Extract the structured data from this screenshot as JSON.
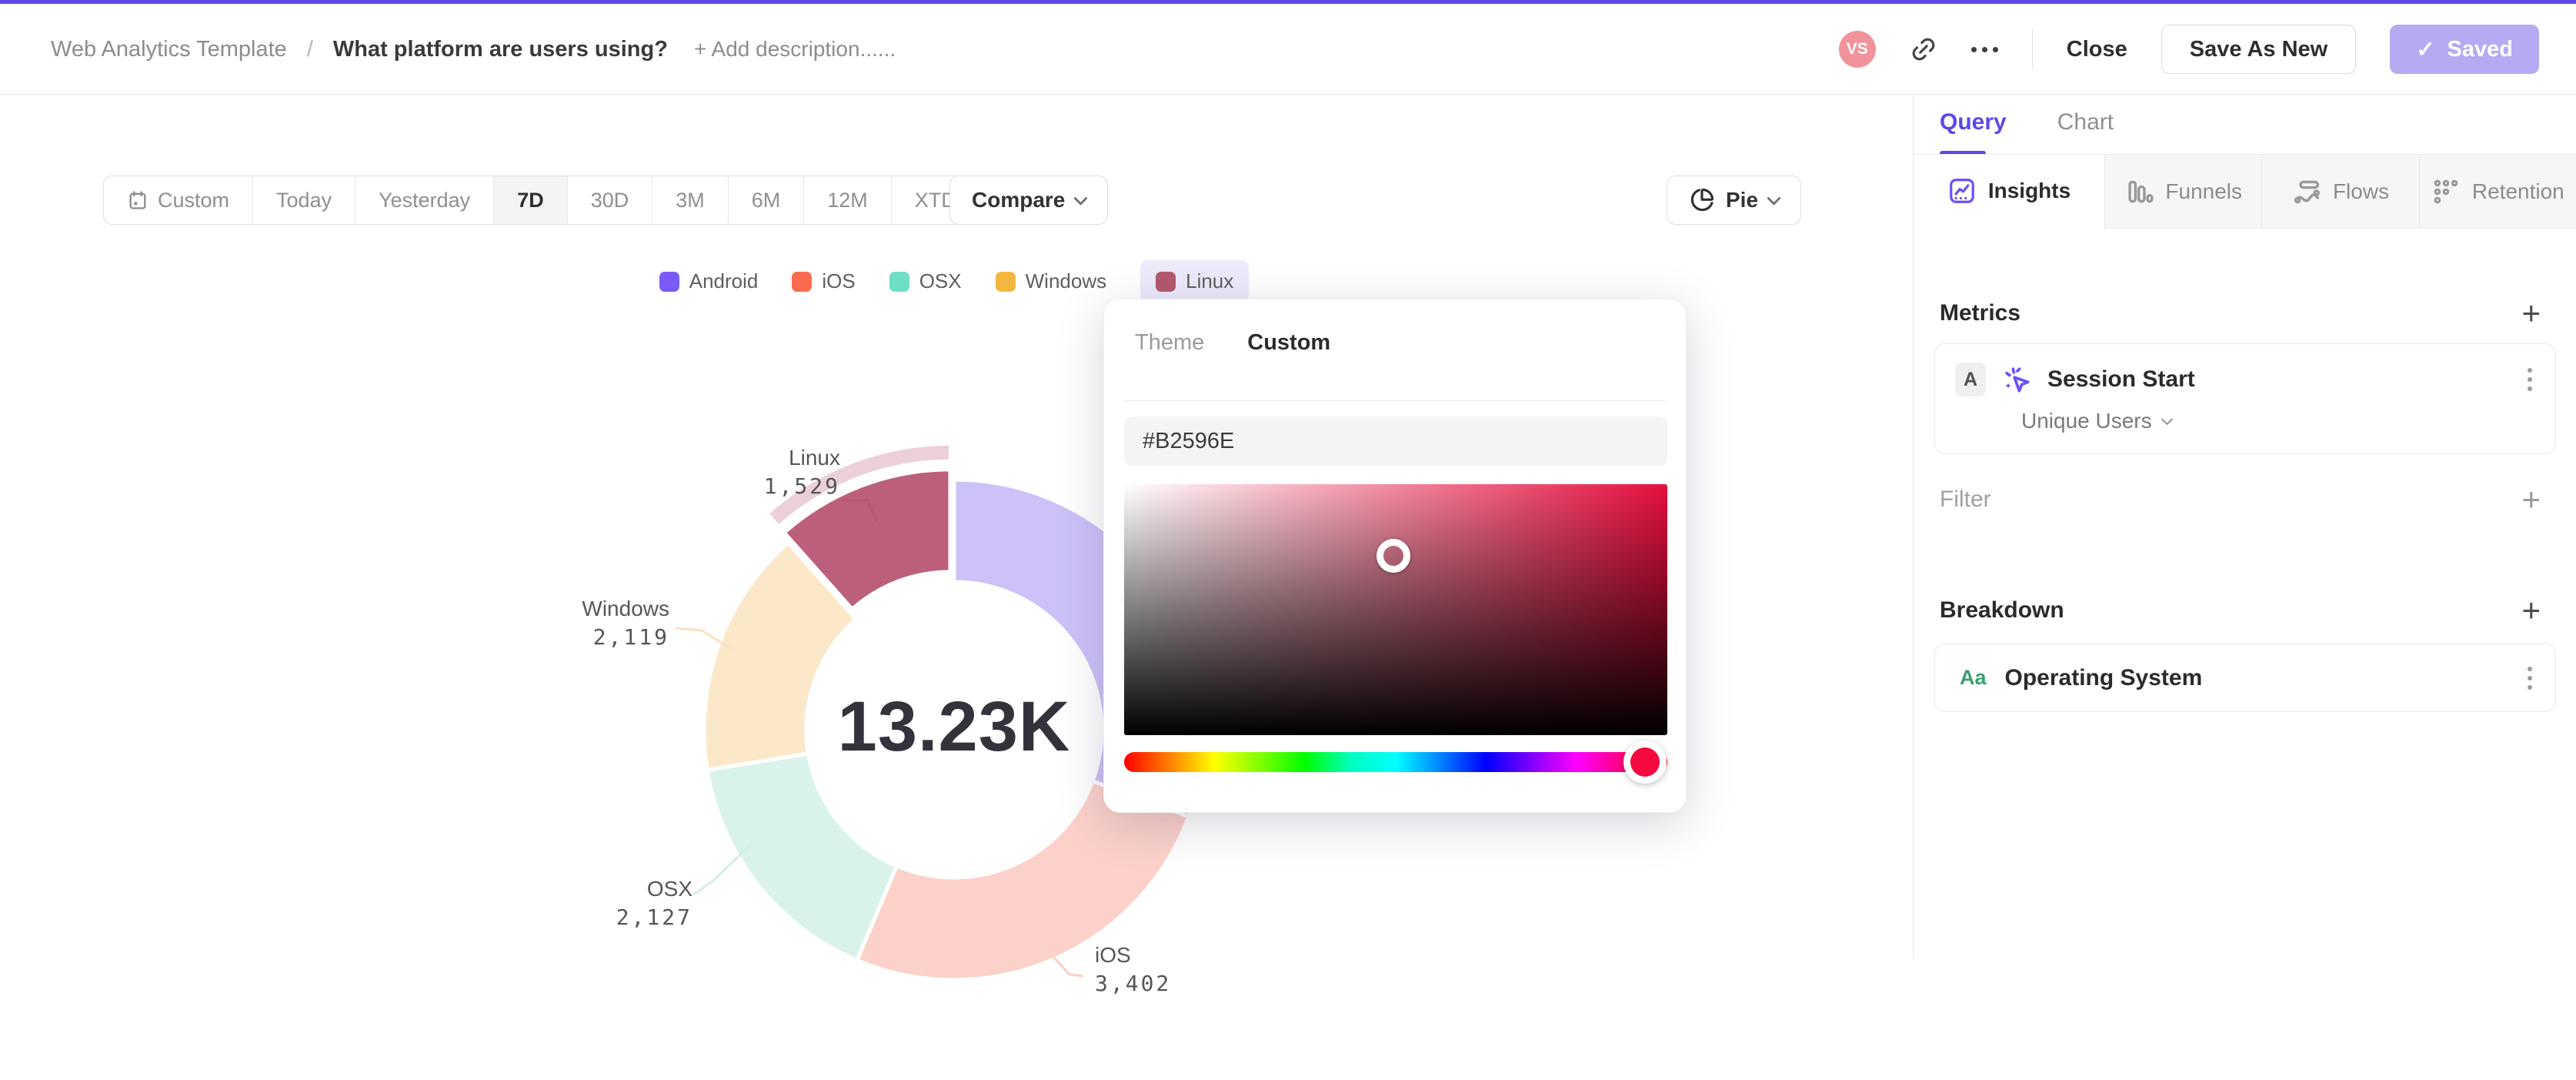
{
  "header": {
    "breadcrumb_root": "Web Analytics Template",
    "breadcrumb_separator": "/",
    "title": "What platform are users using?",
    "add_description": "+ Add description......",
    "avatar_initials": "VS",
    "close_label": "Close",
    "save_as_new_label": "Save As New",
    "saved_label": "Saved",
    "saved_check": "✓",
    "accent_color": "#5b48e6",
    "saved_button_color": "#b5abf2",
    "avatar_color": "#f2939b"
  },
  "toolbar": {
    "date_ranges": [
      "Custom",
      "Today",
      "Yesterday",
      "7D",
      "30D",
      "3M",
      "6M",
      "12M",
      "XTD"
    ],
    "active_range": "7D",
    "compare_label": "Compare",
    "chart_type_label": "Pie"
  },
  "chart_data": {
    "type": "pie",
    "title": "",
    "categories": [
      "Android",
      "iOS",
      "OSX",
      "Windows",
      "Linux"
    ],
    "values": [
      4053,
      3402,
      2127,
      2119,
      1529
    ],
    "total": 13230,
    "center_label": "13.23K",
    "highlight": "Linux",
    "legend_colors": [
      "#7a5af8",
      "#f96b4f",
      "#6edec6",
      "#f4b73e",
      "#b2596e"
    ],
    "slice_colors": [
      "#cdc1f8",
      "#fbd1c9",
      "#d9f3ea",
      "#fae8c9",
      "#bc5f7b"
    ],
    "leader_colors": [
      "#cdc1f8",
      "#f9cfc8",
      "#d4efe5",
      "#f8e3c0",
      "#b2596e"
    ],
    "highlight_halo_color": "#ecd0d9",
    "callouts": [
      {
        "name": "Linux",
        "value": "1,529"
      },
      {
        "name": "Windows",
        "value": "2,119"
      },
      {
        "name": "OSX",
        "value": "2,127"
      },
      {
        "name": "iOS",
        "value": "3,402"
      }
    ]
  },
  "color_picker": {
    "tabs": [
      "Theme",
      "Custom"
    ],
    "active_tab": "Custom",
    "hex_value": "#B2596E",
    "selected_color": "#B2596E",
    "hue_handle_color": "#f40a3e"
  },
  "sidebar": {
    "tabs": [
      "Query",
      "Chart"
    ],
    "active_tab": "Query",
    "view_tabs": [
      "Insights",
      "Funnels",
      "Flows",
      "Retention"
    ],
    "active_view_tab": "Insights",
    "metrics": {
      "heading": "Metrics",
      "add_label": "+",
      "rows": [
        {
          "badge": "A",
          "label": "Session Start",
          "aggregation": "Unique Users"
        }
      ]
    },
    "filter": {
      "heading": "Filter",
      "add_label": "+"
    },
    "breakdown": {
      "heading": "Breakdown",
      "add_label": "+",
      "rows": [
        {
          "badge": "Aa",
          "label": "Operating System"
        }
      ]
    }
  }
}
